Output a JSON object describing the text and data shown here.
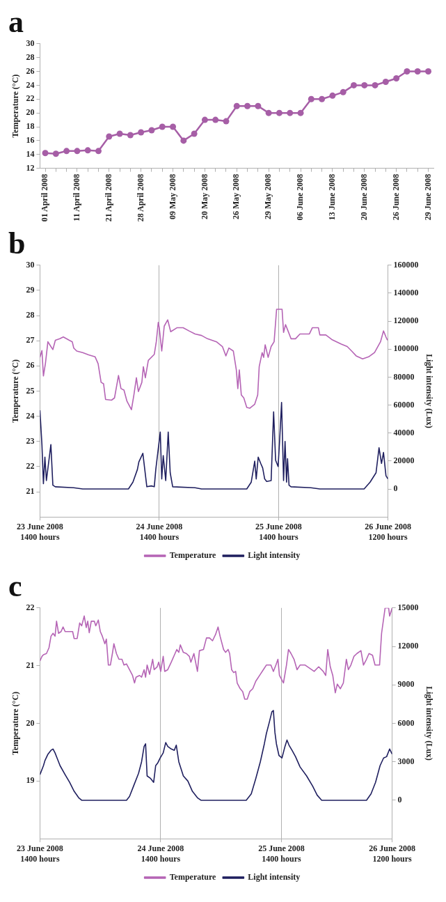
{
  "chart_data": [
    {
      "type": "line",
      "title": "a",
      "ylabel": "Temperature (°C)",
      "categories": [
        "01 April 2008",
        null,
        null,
        "11 April 2008",
        null,
        null,
        "21 April 2008",
        null,
        null,
        "28 April 2008",
        null,
        null,
        "09 May 2008",
        null,
        null,
        "20 May 2008",
        null,
        null,
        "26 May 2008",
        null,
        null,
        "29 May 2008",
        null,
        null,
        "06 June 2008",
        null,
        null,
        "13 June 2008",
        null,
        null,
        "20 June 2008",
        null,
        null,
        "26 June 2008",
        null,
        null,
        "29 June 2008"
      ],
      "series": [
        {
          "color": "#a65ea6",
          "values": [
            14.2,
            14.1,
            14.5,
            14.5,
            14.6,
            14.5,
            16.6,
            17.0,
            16.8,
            17.2,
            17.5,
            18.0,
            18.0,
            16.0,
            17.0,
            19.0,
            19.0,
            18.8,
            21.0,
            21.0,
            21.0,
            20.0,
            20.0,
            20.0,
            20.0,
            22.0,
            22.0,
            22.5,
            23.0,
            24.0,
            24.0,
            24.0,
            24.5,
            25.0,
            26.0,
            26.0,
            26.0
          ]
        }
      ],
      "ylim": [
        12,
        30
      ],
      "yticks": [
        12,
        14,
        16,
        18,
        20,
        22,
        24,
        26,
        28,
        30
      ],
      "marker": "circle",
      "grid": false
    },
    {
      "type": "line",
      "title": "b",
      "ylabel": "Temperature (°C)",
      "y2label": "Light intensity (Lux)",
      "xlim": [
        "2008-06-23T14:00",
        "2008-06-26T12:00"
      ],
      "xticks": [
        {
          "value": "2008-06-23T14:00",
          "label": "23 June 2008\n1400 hours"
        },
        {
          "value": "2008-06-24T14:00",
          "label": "24 June 2008\n1400 hours"
        },
        {
          "value": "2008-06-25T14:00",
          "label": "25 June 2008\n1400 hours"
        },
        {
          "value": "2008-06-26T12:00",
          "label": "26 June 2008\n1200 hours"
        }
      ],
      "ylim": [
        20,
        30
      ],
      "yticks": [
        21,
        22,
        23,
        24,
        25,
        26,
        27,
        28,
        29,
        30
      ],
      "y2lim": [
        -20000,
        160000
      ],
      "y2ticks": [
        0,
        20000,
        40000,
        60000,
        80000,
        100000,
        120000,
        140000,
        160000
      ],
      "grid": "x",
      "legend": "bottom",
      "series": [
        {
          "name": "Temperature",
          "color": "#b564b5",
          "x": [
            "2008-06-23T14:00",
            "2008-06-23T14:24",
            "2008-06-23T14:42",
            "2008-06-23T15:06",
            "2008-06-23T15:36",
            "2008-06-23T16:12",
            "2008-06-23T16:36",
            "2008-06-23T17:06",
            "2008-06-23T18:00",
            "2008-06-23T18:42",
            "2008-06-23T19:54",
            "2008-06-23T20:30",
            "2008-06-23T20:48",
            "2008-06-23T21:24",
            "2008-06-23T22:36",
            "2008-06-23T23:48",
            "2008-06-24T01:06",
            "2008-06-24T01:42",
            "2008-06-24T02:18",
            "2008-06-24T02:48",
            "2008-06-24T03:12",
            "2008-06-24T04:24",
            "2008-06-24T05:00",
            "2008-06-24T05:48",
            "2008-06-24T06:18",
            "2008-06-24T06:54",
            "2008-06-24T07:30",
            "2008-06-24T08:24",
            "2008-06-24T08:54",
            "2008-06-24T09:24",
            "2008-06-24T09:48",
            "2008-06-24T10:30",
            "2008-06-24T10:48",
            "2008-06-24T11:12",
            "2008-06-24T11:48",
            "2008-06-24T13:00",
            "2008-06-24T13:24",
            "2008-06-24T13:48",
            "2008-06-24T14:00",
            "2008-06-24T14:30",
            "2008-06-24T15:00",
            "2008-06-24T15:42",
            "2008-06-24T16:18",
            "2008-06-24T17:36",
            "2008-06-24T18:48",
            "2008-06-24T20:00",
            "2008-06-24T21:12",
            "2008-06-24T22:30",
            "2008-06-24T23:42",
            "2008-06-25T01:30",
            "2008-06-25T02:42",
            "2008-06-25T03:24",
            "2008-06-25T04:00",
            "2008-06-25T04:54",
            "2008-06-25T05:30",
            "2008-06-25T05:48",
            "2008-06-25T06:06",
            "2008-06-25T06:30",
            "2008-06-25T07:00",
            "2008-06-25T07:36",
            "2008-06-25T08:12",
            "2008-06-25T09:12",
            "2008-06-25T09:48",
            "2008-06-25T10:06",
            "2008-06-25T10:42",
            "2008-06-25T11:00",
            "2008-06-25T11:18",
            "2008-06-25T11:54",
            "2008-06-25T12:30",
            "2008-06-25T13:06",
            "2008-06-25T13:36",
            "2008-06-25T14:42",
            "2008-06-25T15:00",
            "2008-06-25T15:24",
            "2008-06-25T15:54",
            "2008-06-25T16:30",
            "2008-06-25T17:24",
            "2008-06-25T18:18",
            "2008-06-25T20:12",
            "2008-06-25T20:48",
            "2008-06-25T22:00",
            "2008-06-25T22:18",
            "2008-06-25T23:30",
            "2008-06-26T00:42",
            "2008-06-26T02:36",
            "2008-06-26T03:48",
            "2008-06-26T04:42",
            "2008-06-26T05:36",
            "2008-06-26T06:54",
            "2008-06-26T08:06",
            "2008-06-26T09:18",
            "2008-06-26T10:30",
            "2008-06-26T11:06",
            "2008-06-26T11:36",
            "2008-06-26T11:54"
          ],
          "values": [
            26.34,
            26.61,
            25.6,
            26.09,
            26.96,
            26.77,
            26.65,
            27.02,
            27.08,
            27.15,
            27.02,
            26.96,
            26.71,
            26.59,
            26.53,
            26.44,
            26.36,
            26.09,
            25.35,
            25.29,
            24.67,
            24.64,
            24.73,
            25.62,
            25.1,
            25.04,
            24.6,
            24.26,
            24.85,
            25.53,
            24.98,
            25.35,
            25.97,
            25.53,
            26.22,
            26.46,
            26.96,
            27.73,
            27.52,
            26.59,
            27.58,
            27.83,
            27.36,
            27.52,
            27.52,
            27.39,
            27.27,
            27.21,
            27.08,
            26.96,
            26.77,
            26.4,
            26.71,
            26.59,
            25.84,
            25.1,
            25.84,
            24.85,
            24.73,
            24.35,
            24.32,
            24.48,
            24.85,
            25.97,
            26.53,
            26.34,
            26.84,
            26.34,
            26.77,
            26.96,
            28.25,
            28.25,
            27.33,
            27.64,
            27.39,
            27.08,
            27.08,
            27.27,
            27.27,
            27.52,
            27.52,
            27.23,
            27.23,
            27.05,
            26.87,
            26.77,
            26.59,
            26.4,
            26.28,
            26.36,
            26.53,
            26.96,
            27.39,
            27.15,
            27.02
          ]
        },
        {
          "name": "Light intensity",
          "color": "#1f1f5f",
          "axis": "y2",
          "x": [
            "2008-06-23T14:00",
            "2008-06-23T14:24",
            "2008-06-23T14:42",
            "2008-06-23T15:00",
            "2008-06-23T15:18",
            "2008-06-23T16:12",
            "2008-06-23T16:36",
            "2008-06-23T17:06",
            "2008-06-23T20:48",
            "2008-06-23T22:36",
            "2008-06-24T07:48",
            "2008-06-24T08:42",
            "2008-06-24T09:36",
            "2008-06-24T09:54",
            "2008-06-24T10:42",
            "2008-06-24T11:30",
            "2008-06-24T12:24",
            "2008-06-24T13:00",
            "2008-06-24T13:18",
            "2008-06-24T14:12",
            "2008-06-24T14:30",
            "2008-06-24T14:48",
            "2008-06-24T15:18",
            "2008-06-24T15:48",
            "2008-06-24T16:12",
            "2008-06-24T16:42",
            "2008-06-24T21:12",
            "2008-06-24T22:30",
            "2008-06-25T07:36",
            "2008-06-25T08:30",
            "2008-06-25T09:12",
            "2008-06-25T09:30",
            "2008-06-25T09:54",
            "2008-06-25T10:24",
            "2008-06-25T10:48",
            "2008-06-25T11:12",
            "2008-06-25T11:36",
            "2008-06-25T12:30",
            "2008-06-25T13:00",
            "2008-06-25T13:24",
            "2008-06-25T13:54",
            "2008-06-25T14:12",
            "2008-06-25T14:36",
            "2008-06-25T15:00",
            "2008-06-25T15:18",
            "2008-06-25T15:36",
            "2008-06-25T15:48",
            "2008-06-25T16:06",
            "2008-06-25T16:30",
            "2008-06-25T20:30",
            "2008-06-25T22:18",
            "2008-06-26T07:12",
            "2008-06-26T08:24",
            "2008-06-26T09:36",
            "2008-06-26T10:12",
            "2008-06-26T10:42",
            "2008-06-26T11:06",
            "2008-06-26T11:36",
            "2008-06-26T12:00"
          ],
          "values": [
            56300,
            31700,
            3800,
            22800,
            6000,
            31700,
            2700,
            1600,
            900,
            0,
            0,
            4900,
            13900,
            19400,
            25500,
            1600,
            2200,
            1600,
            13900,
            40700,
            7200,
            23900,
            6000,
            40700,
            11600,
            1600,
            900,
            0,
            0,
            4900,
            19900,
            7200,
            22800,
            18300,
            15000,
            7200,
            5400,
            6000,
            55200,
            20600,
            16100,
            34000,
            61900,
            6000,
            34000,
            4900,
            21700,
            2700,
            1600,
            900,
            0,
            0,
            4900,
            11600,
            29500,
            18300,
            26100,
            9400,
            7200
          ]
        }
      ]
    },
    {
      "type": "line",
      "title": "c",
      "ylabel": "Temperature (°C)",
      "y2label": "Light intensity (Lux)",
      "xlim": [
        "2008-06-23T14:00",
        "2008-06-26T12:00"
      ],
      "xticks": [
        {
          "value": "2008-06-23T14:00",
          "label": "23 June 2008\n1400 hours"
        },
        {
          "value": "2008-06-24T14:00",
          "label": "24 June 2008\n1400 hours"
        },
        {
          "value": "2008-06-25T14:00",
          "label": "25 June 2008\n1400 hours"
        },
        {
          "value": "2008-06-26T12:00",
          "label": "26 June 2008\n1200 hours"
        }
      ],
      "ylim": [
        18,
        22
      ],
      "yticks": [
        19,
        20,
        21,
        22
      ],
      "y2lim": [
        -3000,
        15000
      ],
      "y2ticks": [
        0,
        3000,
        6000,
        9000,
        12000,
        15000
      ],
      "grid": "x",
      "legend": "bottom",
      "series": [
        {
          "name": "Temperature",
          "color": "#b564b5",
          "x": [
            "2008-06-23T14:00",
            "2008-06-23T14:24",
            "2008-06-23T14:42",
            "2008-06-23T15:18",
            "2008-06-23T15:48",
            "2008-06-23T16:12",
            "2008-06-23T16:36",
            "2008-06-23T17:00",
            "2008-06-23T17:18",
            "2008-06-23T17:42",
            "2008-06-23T18:12",
            "2008-06-23T18:36",
            "2008-06-23T19:00",
            "2008-06-23T19:36",
            "2008-06-23T20:30",
            "2008-06-23T20:48",
            "2008-06-23T21:24",
            "2008-06-23T21:54",
            "2008-06-23T22:18",
            "2008-06-23T22:48",
            "2008-06-23T23:12",
            "2008-06-23T23:30",
            "2008-06-23T23:48",
            "2008-06-24T00:12",
            "2008-06-24T00:48",
            "2008-06-24T01:06",
            "2008-06-24T01:36",
            "2008-06-24T02:00",
            "2008-06-24T02:24",
            "2008-06-24T02:54",
            "2008-06-24T03:12",
            "2008-06-24T03:36",
            "2008-06-24T04:00",
            "2008-06-24T04:24",
            "2008-06-24T04:42",
            "2008-06-24T05:12",
            "2008-06-24T05:42",
            "2008-06-24T06:18",
            "2008-06-24T06:42",
            "2008-06-24T07:12",
            "2008-06-24T07:48",
            "2008-06-24T08:24",
            "2008-06-24T08:48",
            "2008-06-24T09:06",
            "2008-06-24T09:48",
            "2008-06-24T10:12",
            "2008-06-24T10:42",
            "2008-06-24T11:00",
            "2008-06-24T11:18",
            "2008-06-24T11:48",
            "2008-06-24T12:24",
            "2008-06-24T12:42",
            "2008-06-24T13:18",
            "2008-06-24T13:36",
            "2008-06-24T14:00",
            "2008-06-24T14:30",
            "2008-06-24T14:48",
            "2008-06-24T15:24",
            "2008-06-24T16:06",
            "2008-06-24T16:42",
            "2008-06-24T17:12",
            "2008-06-24T17:36",
            "2008-06-24T17:54",
            "2008-06-24T18:30",
            "2008-06-24T19:06",
            "2008-06-24T19:42",
            "2008-06-24T20:00",
            "2008-06-24T20:36",
            "2008-06-24T21:18",
            "2008-06-24T21:42",
            "2008-06-24T22:30",
            "2008-06-24T23:06",
            "2008-06-24T23:42",
            "2008-06-25T00:18",
            "2008-06-25T00:54",
            "2008-06-25T01:24",
            "2008-06-25T01:48",
            "2008-06-25T02:30",
            "2008-06-25T02:54",
            "2008-06-25T03:24",
            "2008-06-25T03:42",
            "2008-06-25T04:06",
            "2008-06-25T04:30",
            "2008-06-25T04:54",
            "2008-06-25T05:12",
            "2008-06-25T05:48",
            "2008-06-25T06:18",
            "2008-06-25T06:42",
            "2008-06-25T07:12",
            "2008-06-25T07:42",
            "2008-06-25T08:18",
            "2008-06-25T08:54",
            "2008-06-25T09:48",
            "2008-06-25T10:24",
            "2008-06-25T11:00",
            "2008-06-25T11:54",
            "2008-06-25T12:24",
            "2008-06-25T12:54",
            "2008-06-25T13:18",
            "2008-06-25T13:36",
            "2008-06-25T14:24",
            "2008-06-25T15:00",
            "2008-06-25T15:24",
            "2008-06-25T15:54",
            "2008-06-25T16:30",
            "2008-06-25T17:06",
            "2008-06-25T17:42",
            "2008-06-25T18:42",
            "2008-06-25T20:30",
            "2008-06-25T21:24",
            "2008-06-25T22:18",
            "2008-06-25T22:48",
            "2008-06-25T23:12",
            "2008-06-25T23:42",
            "2008-06-26T00:12",
            "2008-06-26T00:42",
            "2008-06-26T01:06",
            "2008-06-26T01:42",
            "2008-06-26T02:18",
            "2008-06-26T02:54",
            "2008-06-26T03:18",
            "2008-06-26T03:48",
            "2008-06-26T04:24",
            "2008-06-26T05:00",
            "2008-06-26T05:48",
            "2008-06-26T06:18",
            "2008-06-26T06:54",
            "2008-06-26T07:24",
            "2008-06-26T08:06",
            "2008-06-26T08:36",
            "2008-06-26T09:30",
            "2008-06-26T09:54",
            "2008-06-26T10:36",
            "2008-06-26T11:18",
            "2008-06-26T11:30",
            "2008-06-26T12:00"
          ],
          "values": [
            21.08,
            21.16,
            21.19,
            21.21,
            21.31,
            21.51,
            21.56,
            21.51,
            21.77,
            21.56,
            21.59,
            21.67,
            21.59,
            21.59,
            21.59,
            21.47,
            21.47,
            21.74,
            21.69,
            21.86,
            21.66,
            21.77,
            21.57,
            21.77,
            21.77,
            21.69,
            21.79,
            21.59,
            21.51,
            21.38,
            21.46,
            21.01,
            21.01,
            21.21,
            21.38,
            21.21,
            21.11,
            21.11,
            21.01,
            21.03,
            20.93,
            20.83,
            20.7,
            20.8,
            20.83,
            20.8,
            20.93,
            20.8,
            21.01,
            20.85,
            21.11,
            20.93,
            20.98,
            21.06,
            20.9,
            21.16,
            20.9,
            20.93,
            21.06,
            21.18,
            21.28,
            21.23,
            21.36,
            21.23,
            21.21,
            21.16,
            21.06,
            21.21,
            20.9,
            21.26,
            21.28,
            21.48,
            21.48,
            21.43,
            21.54,
            21.67,
            21.51,
            21.28,
            21.23,
            21.28,
            21.21,
            20.93,
            20.88,
            20.9,
            20.7,
            20.6,
            20.55,
            20.42,
            20.42,
            20.55,
            20.6,
            20.73,
            20.85,
            20.93,
            21.01,
            21.01,
            20.9,
            21.01,
            21.11,
            20.83,
            20.7,
            21.01,
            21.28,
            21.21,
            21.11,
            20.93,
            21.01,
            21.01,
            20.9,
            20.98,
            20.9,
            20.83,
            21.28,
            20.98,
            20.83,
            20.53,
            20.68,
            20.6,
            20.7,
            21.11,
            20.93,
            21.01,
            21.16,
            21.21,
            21.26,
            21.01,
            21.11,
            21.21,
            21.18,
            21.01,
            21.01,
            21.56,
            22,
            22,
            21.86,
            22
          ]
        },
        {
          "name": "Light intensity",
          "color": "#1f1f5f",
          "axis": "y2",
          "x": [
            "2008-06-23T14:00",
            "2008-06-23T14:42",
            "2008-06-23T15:00",
            "2008-06-23T15:36",
            "2008-06-23T16:12",
            "2008-06-23T16:36",
            "2008-06-23T17:00",
            "2008-06-23T17:24",
            "2008-06-23T18:00",
            "2008-06-23T19:00",
            "2008-06-23T19:54",
            "2008-06-23T20:48",
            "2008-06-23T21:42",
            "2008-06-23T22:18",
            "2008-06-24T07:12",
            "2008-06-24T07:48",
            "2008-06-24T08:42",
            "2008-06-24T09:36",
            "2008-06-24T10:12",
            "2008-06-24T10:42",
            "2008-06-24T11:00",
            "2008-06-24T11:18",
            "2008-06-24T12:00",
            "2008-06-24T12:36",
            "2008-06-24T13:00",
            "2008-06-24T13:24",
            "2008-06-24T13:54",
            "2008-06-24T14:30",
            "2008-06-24T15:00",
            "2008-06-24T15:24",
            "2008-06-24T16:06",
            "2008-06-24T16:42",
            "2008-06-24T17:06",
            "2008-06-24T17:36",
            "2008-06-24T18:30",
            "2008-06-24T19:24",
            "2008-06-24T20:18",
            "2008-06-24T21:18",
            "2008-06-24T22:00",
            "2008-06-25T07:00",
            "2008-06-25T08:00",
            "2008-06-25T08:54",
            "2008-06-25T09:48",
            "2008-06-25T10:36",
            "2008-06-25T11:00",
            "2008-06-25T11:36",
            "2008-06-25T12:06",
            "2008-06-25T12:24",
            "2008-06-25T12:42",
            "2008-06-25T13:00",
            "2008-06-25T13:30",
            "2008-06-25T14:06",
            "2008-06-25T14:42",
            "2008-06-25T15:06",
            "2008-06-25T15:30",
            "2008-06-25T16:06",
            "2008-06-25T16:48",
            "2008-06-25T17:42",
            "2008-06-25T19:00",
            "2008-06-25T20:12",
            "2008-06-25T21:06",
            "2008-06-25T22:00",
            "2008-06-26T06:54",
            "2008-06-26T07:48",
            "2008-06-26T08:42",
            "2008-06-26T09:36",
            "2008-06-26T10:18",
            "2008-06-26T10:54",
            "2008-06-26T11:30",
            "2008-06-26T12:00"
          ],
          "values": [
            2000,
            2700,
            3100,
            3600,
            3900,
            4000,
            3700,
            3300,
            2700,
            2000,
            1400,
            700,
            200,
            0,
            0,
            300,
            1200,
            2100,
            3000,
            4200,
            4400,
            1900,
            1700,
            1400,
            2700,
            2900,
            3300,
            3700,
            4500,
            4200,
            4000,
            3900,
            4300,
            3000,
            1900,
            1500,
            700,
            200,
            0,
            0,
            500,
            1700,
            3000,
            4400,
            5200,
            6100,
            6900,
            7000,
            5300,
            4400,
            3500,
            3300,
            4200,
            4700,
            4300,
            3900,
            3400,
            2600,
            1900,
            1100,
            400,
            0,
            0,
            500,
            1400,
            2700,
            3300,
            3400,
            4000,
            3600
          ]
        }
      ]
    }
  ]
}
